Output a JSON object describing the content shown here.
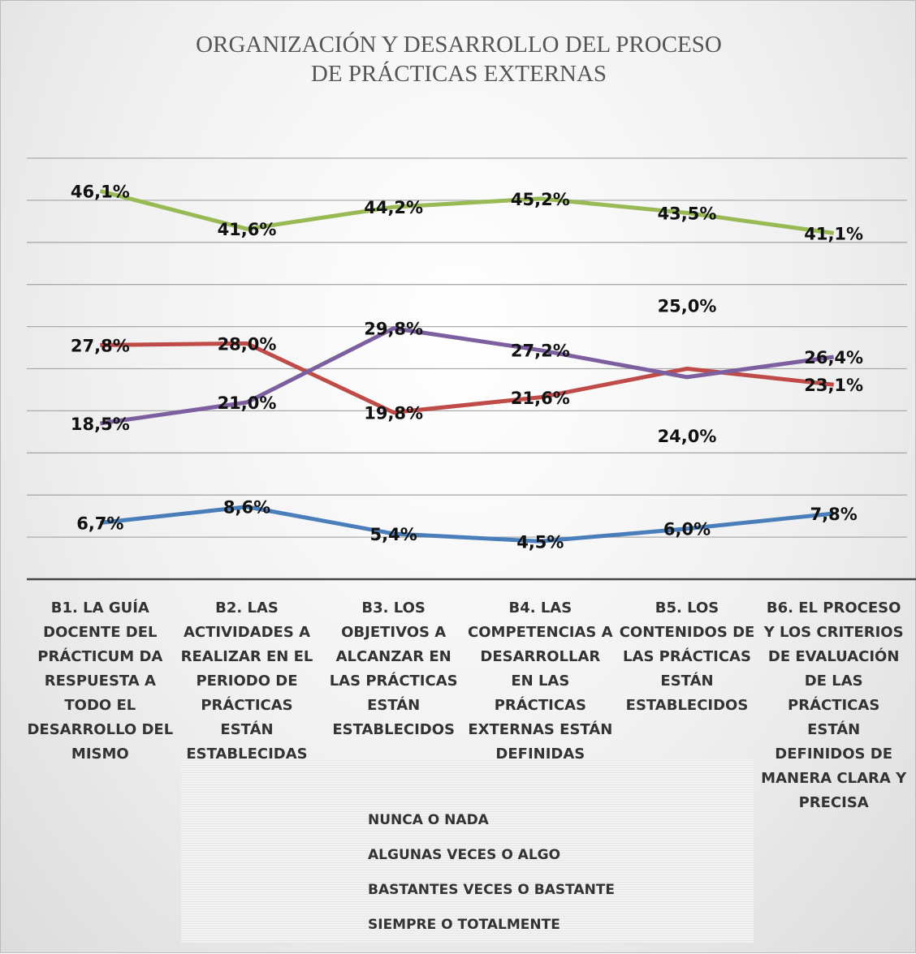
{
  "chart_data": {
    "type": "line",
    "title": "ORGANIZACIÓN Y DESARROLLO DEL PROCESO DE PRÁCTICAS EXTERNAS",
    "categories": [
      "B1. LA GUÍA DOCENTE DEL PRÁCTICUM DA RESPUESTA A TODO EL DESARROLLO DEL MISMO",
      "B2. LAS ACTIVIDADES A REALIZAR EN EL PERIODO DE PRÁCTICAS ESTÁN ESTABLECIDAS",
      "B3. LOS OBJETIVOS A ALCANZAR EN LAS PRÁCTICAS ESTÁN ESTABLECIDOS",
      "B4. LAS COMPETENCIAS A DESARROLLAR EN LAS PRÁCTICAS EXTERNAS ESTÁN DEFINIDAS",
      "B5. LOS CONTENIDOS DE LAS PRÁCTICAS ESTÁN ESTABLECIDOS",
      "B6. EL PROCESO Y LOS CRITERIOS DE EVALUACIÓN DE LAS PRÁCTICAS ESTÁN DEFINIDOS DE MANERA CLARA Y PRECISA"
    ],
    "series": [
      {
        "name": "NUNCA O NADA",
        "color": "#4a7ebb",
        "values": [
          6.7,
          8.6,
          5.4,
          4.5,
          6.0,
          7.8
        ],
        "value_labels": [
          "6,7%",
          "8,6%",
          "5,4%",
          "4,5%",
          "6,0%",
          "7,8%"
        ]
      },
      {
        "name": "ALGUNAS VECES O ALGO",
        "color": "#be4b48",
        "values": [
          27.8,
          28.0,
          19.8,
          21.6,
          25.0,
          23.1
        ],
        "value_labels": [
          "27,8%",
          "28,0%",
          "19,8%",
          "21,6%",
          "25,0%",
          "23,1%"
        ]
      },
      {
        "name": "BASTANTES VECES O BASTANTE",
        "color": "#98b954",
        "values": [
          46.1,
          41.6,
          44.2,
          45.2,
          43.5,
          41.1
        ],
        "value_labels": [
          "46,1%",
          "41,6%",
          "44,2%",
          "45,2%",
          "43,5%",
          "41,1%"
        ]
      },
      {
        "name": "SIEMPRE O TOTALMENTE",
        "color": "#7d5fa0",
        "values": [
          18.5,
          21.0,
          29.8,
          27.2,
          24.0,
          26.4
        ],
        "value_labels": [
          "18,5%",
          "21,0%",
          "29,8%",
          "27,2%",
          "24,0%",
          "26,4%"
        ]
      }
    ],
    "ylim": [
      0,
      50
    ],
    "yticks": [
      0,
      5,
      10,
      15,
      20,
      25,
      30,
      35,
      40,
      45,
      50
    ],
    "grid": true,
    "legend": "bottom"
  }
}
